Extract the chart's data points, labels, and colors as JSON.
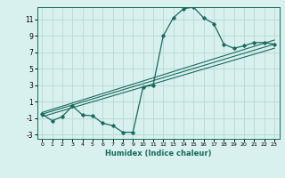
{
  "xlabel": "Humidex (Indice chaleur)",
  "ylabel": "",
  "bg_color": "#d8f0ee",
  "grid_color": "#b8d8d4",
  "line_color": "#1a6b5a",
  "xlim": [
    -0.5,
    23.5
  ],
  "ylim": [
    -3.5,
    12.5
  ],
  "xticks": [
    0,
    1,
    2,
    3,
    4,
    5,
    6,
    7,
    8,
    9,
    10,
    11,
    12,
    13,
    14,
    15,
    16,
    17,
    18,
    19,
    20,
    21,
    22,
    23
  ],
  "yticks": [
    -3,
    -1,
    1,
    3,
    5,
    7,
    9,
    11
  ],
  "curve_x": [
    0,
    1,
    2,
    3,
    4,
    5,
    6,
    7,
    8,
    9,
    10,
    11,
    12,
    13,
    14,
    15,
    16,
    17,
    18,
    19,
    20,
    21,
    22,
    23
  ],
  "curve_y": [
    -0.5,
    -1.3,
    -0.8,
    0.5,
    -0.6,
    -0.7,
    -1.6,
    -1.9,
    -2.7,
    -2.7,
    2.8,
    3.0,
    9.0,
    11.2,
    12.3,
    12.5,
    11.2,
    10.5,
    8.0,
    7.5,
    7.8,
    8.2,
    8.2,
    8.0
  ],
  "line1_x": [
    0,
    23
  ],
  "line1_y": [
    -0.5,
    8.0
  ],
  "line2_x": [
    0,
    23
  ],
  "line2_y": [
    -0.8,
    7.5
  ],
  "line3_x": [
    0,
    23
  ],
  "line3_y": [
    -0.3,
    8.5
  ]
}
